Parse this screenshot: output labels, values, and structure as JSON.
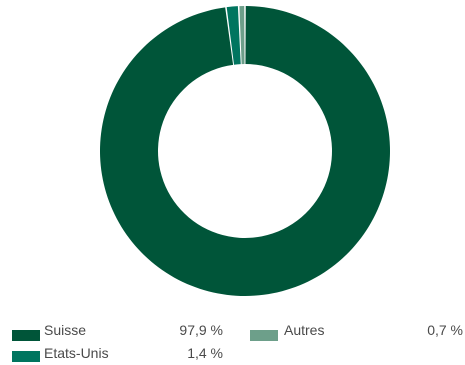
{
  "chart_data": {
    "type": "pie",
    "subtype": "donut",
    "categories": [
      "Suisse",
      "Etats-Unis",
      "Autres"
    ],
    "values": [
      97.9,
      1.4,
      0.7
    ],
    "value_labels": [
      "97,9 %",
      "1,4 %",
      "0,7 %"
    ],
    "colors": [
      "#005539",
      "#00755F",
      "#6D9F8A"
    ],
    "start": "top",
    "direction": "clockwise",
    "legend_position": "bottom"
  }
}
